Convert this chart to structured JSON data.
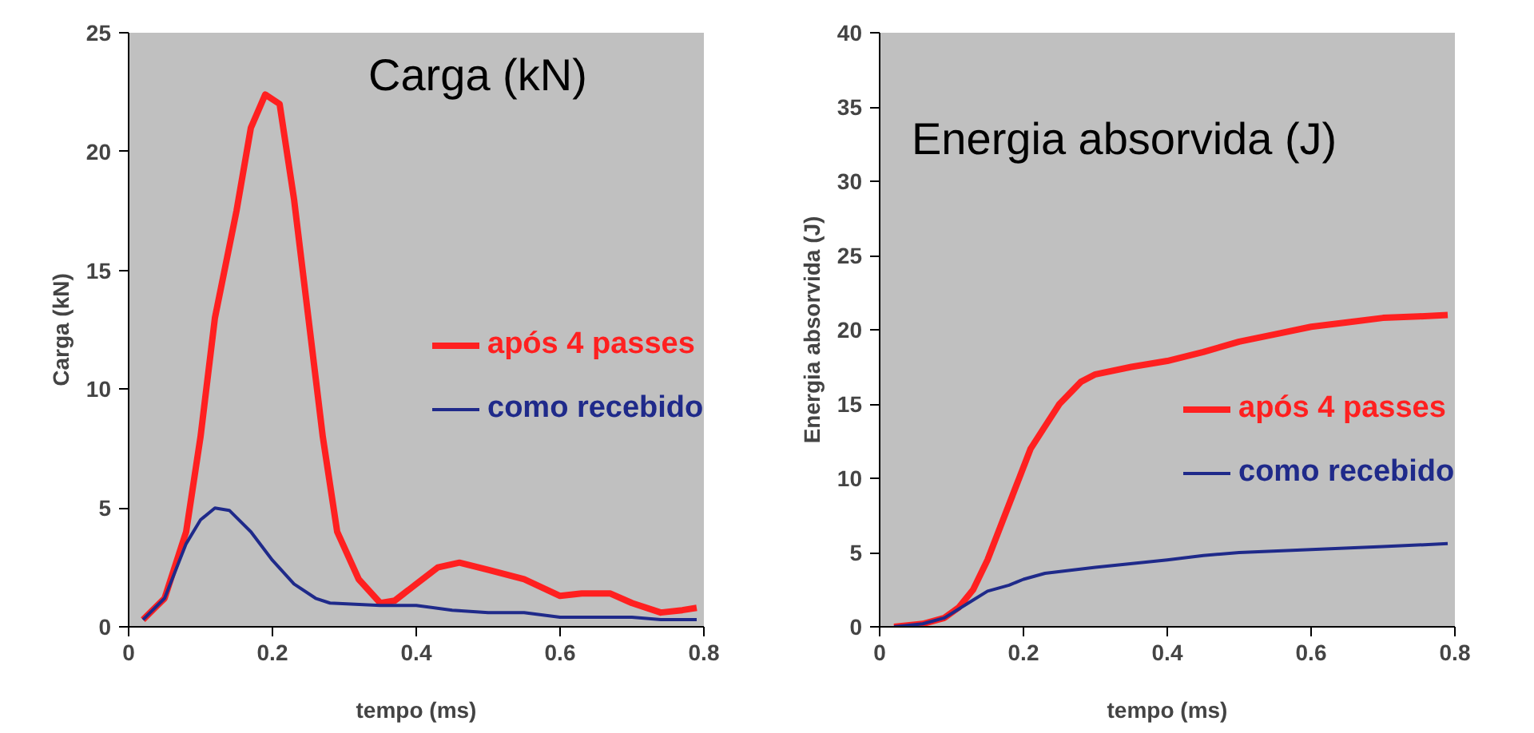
{
  "chart_data": [
    {
      "type": "line",
      "title": "Carga (kN)",
      "xlabel": "tempo (ms)",
      "ylabel": "Carga (kN)",
      "xlim": [
        0,
        0.8
      ],
      "ylim": [
        0,
        25
      ],
      "xticks": [
        0,
        0.2,
        0.4,
        0.6,
        0.8
      ],
      "yticks": [
        0,
        5,
        10,
        15,
        20,
        25
      ],
      "grid": false,
      "legend": "right",
      "marker": "none",
      "line_style": "solid",
      "series": [
        {
          "name": "após 4 passes",
          "color": "#ff2020",
          "x": [
            0.02,
            0.05,
            0.08,
            0.1,
            0.12,
            0.15,
            0.17,
            0.19,
            0.21,
            0.23,
            0.25,
            0.27,
            0.29,
            0.32,
            0.35,
            0.37,
            0.4,
            0.43,
            0.46,
            0.5,
            0.55,
            0.6,
            0.63,
            0.67,
            0.7,
            0.74,
            0.77,
            0.79
          ],
          "values": [
            0.3,
            1.2,
            4,
            8,
            13,
            17.5,
            21,
            22.4,
            22,
            18,
            13,
            8,
            4,
            2,
            1,
            1.1,
            1.8,
            2.5,
            2.7,
            2.4,
            2,
            1.3,
            1.4,
            1.4,
            1,
            0.6,
            0.7,
            0.8
          ]
        },
        {
          "name": "como recebido",
          "color": "#1f2a8a",
          "x": [
            0.02,
            0.05,
            0.08,
            0.1,
            0.12,
            0.14,
            0.17,
            0.2,
            0.23,
            0.26,
            0.28,
            0.35,
            0.4,
            0.45,
            0.5,
            0.55,
            0.6,
            0.65,
            0.7,
            0.74,
            0.79
          ],
          "values": [
            0.3,
            1.2,
            3.5,
            4.5,
            5,
            4.9,
            4,
            2.8,
            1.8,
            1.2,
            1,
            0.9,
            0.9,
            0.7,
            0.6,
            0.6,
            0.4,
            0.4,
            0.4,
            0.3,
            0.3
          ]
        }
      ]
    },
    {
      "type": "line",
      "title": "Energia absorvida (J)",
      "xlabel": "tempo (ms)",
      "ylabel": "Energia absorvida (J)",
      "xlim": [
        0,
        0.8
      ],
      "ylim": [
        0,
        40
      ],
      "xticks": [
        0,
        0.2,
        0.4,
        0.6,
        0.8
      ],
      "yticks": [
        0,
        5,
        10,
        15,
        20,
        25,
        30,
        35,
        40
      ],
      "grid": false,
      "legend": "right",
      "marker": "none",
      "line_style": "solid",
      "series": [
        {
          "name": "após 4 passes",
          "color": "#ff2020",
          "x": [
            0.02,
            0.06,
            0.09,
            0.11,
            0.13,
            0.15,
            0.17,
            0.19,
            0.21,
            0.23,
            0.25,
            0.28,
            0.3,
            0.35,
            0.4,
            0.45,
            0.5,
            0.55,
            0.6,
            0.65,
            0.7,
            0.75,
            0.79
          ],
          "values": [
            0,
            0.2,
            0.6,
            1.3,
            2.5,
            4.5,
            7,
            9.5,
            12,
            13.5,
            15,
            16.5,
            17,
            17.5,
            17.9,
            18.5,
            19.2,
            19.7,
            20.2,
            20.5,
            20.8,
            20.9,
            21
          ]
        },
        {
          "name": "como recebido",
          "color": "#1f2a8a",
          "x": [
            0.02,
            0.06,
            0.09,
            0.11,
            0.13,
            0.15,
            0.18,
            0.2,
            0.23,
            0.3,
            0.4,
            0.45,
            0.5,
            0.6,
            0.7,
            0.79
          ],
          "values": [
            0,
            0.2,
            0.6,
            1.2,
            1.8,
            2.4,
            2.8,
            3.2,
            3.6,
            4,
            4.5,
            4.8,
            5,
            5.2,
            5.4,
            5.6
          ]
        }
      ]
    }
  ]
}
